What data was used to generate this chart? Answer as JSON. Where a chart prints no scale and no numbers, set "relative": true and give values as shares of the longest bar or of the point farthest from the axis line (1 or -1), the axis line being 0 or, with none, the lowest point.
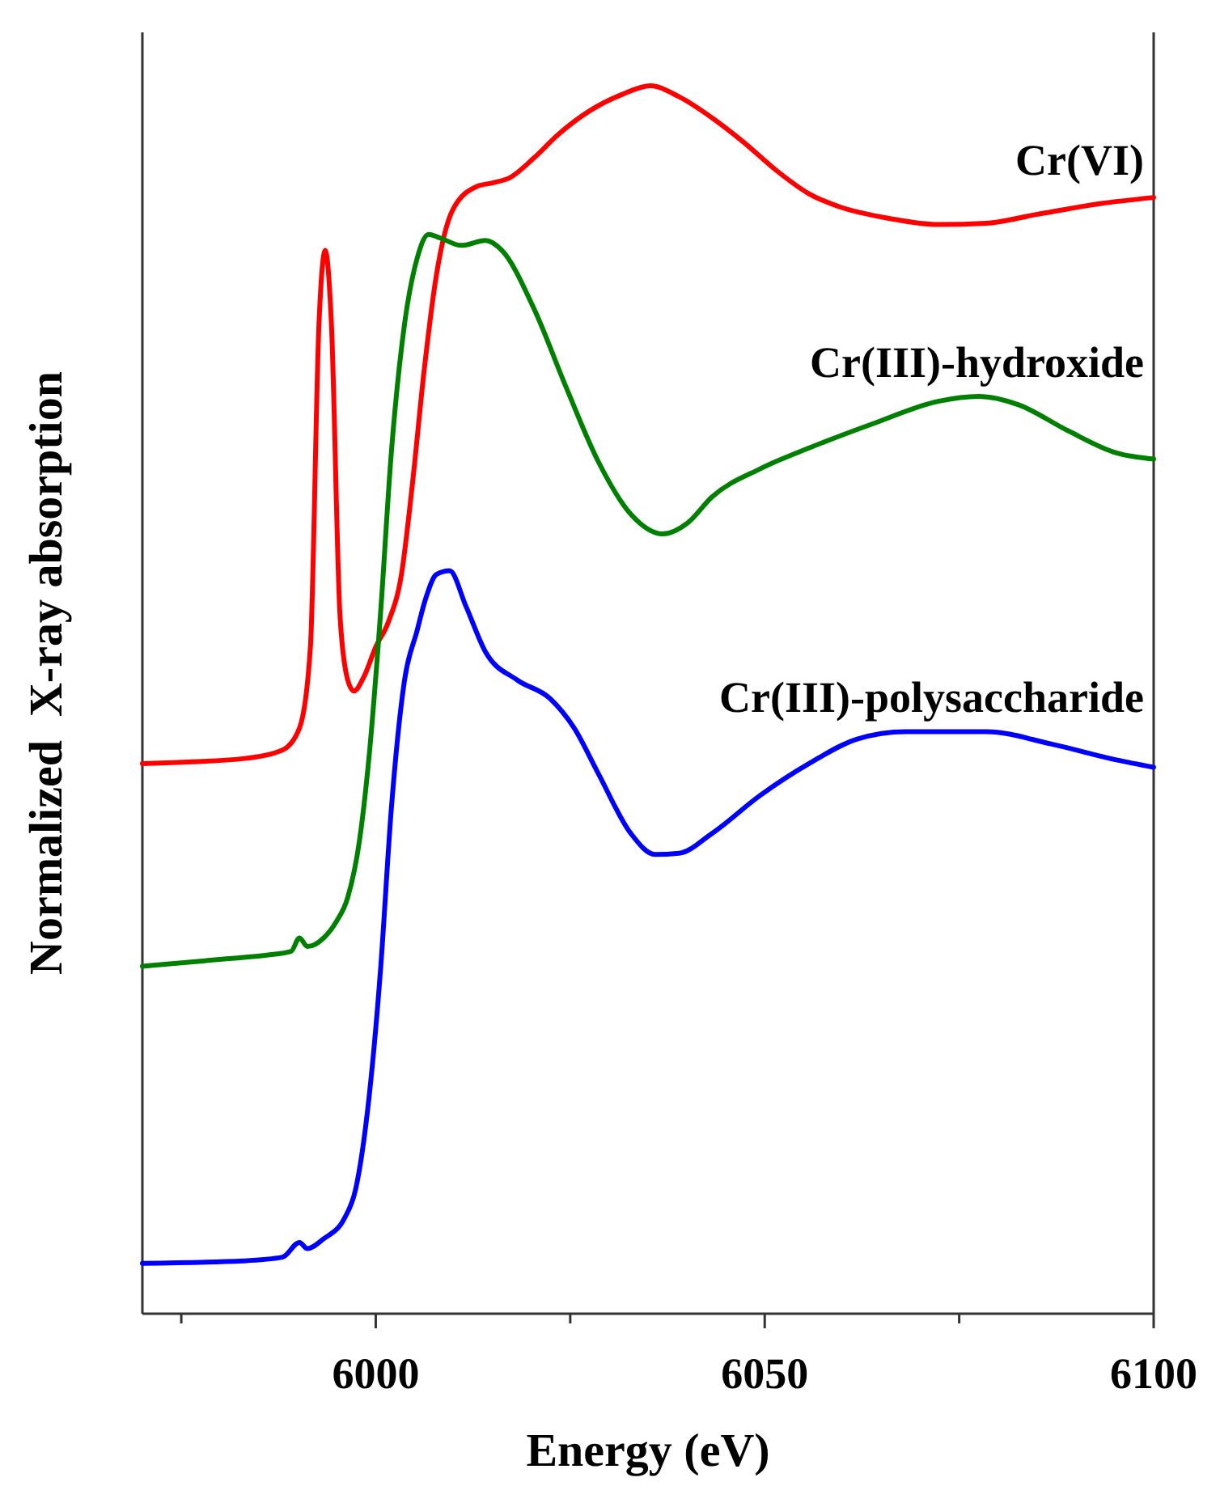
{
  "chart_data": {
    "type": "line",
    "relative": true,
    "xlabel": "Energy (eV)",
    "ylabel": "Normalized  X-ray absorption",
    "xlim": [
      5970,
      6100
    ],
    "xticks": [
      {
        "value": 5975,
        "label": null
      },
      6000,
      {
        "value": 6025,
        "label": null
      },
      6050,
      {
        "value": 6075,
        "label": null
      },
      6100
    ],
    "series": [
      {
        "name": "Cr(VI)",
        "color": "#ff0000",
        "x": [
          5970,
          5982.9,
          5988,
          5990.2,
          5991.6,
          5992.7,
          5993.5,
          5994.3,
          5995.4,
          5996.4,
          5997.2,
          5998.5,
          6000,
          6001.6,
          6003.3,
          6004.7,
          6006.2,
          6007.8,
          6009.9,
          6013,
          6015.1,
          6017.2,
          6020.3,
          6023.4,
          6027.6,
          6031.7,
          6035.3,
          6039,
          6043.2,
          6047.3,
          6051.5,
          6055.7,
          6059.8,
          6066,
          6072.3,
          6078.5,
          6084.8,
          6093.1,
          6100
        ],
        "values": [
          0.448,
          0.452,
          0.459,
          0.477,
          0.543,
          0.806,
          0.866,
          0.806,
          0.569,
          0.516,
          0.507,
          0.519,
          0.543,
          0.563,
          0.602,
          0.675,
          0.767,
          0.846,
          0.899,
          0.918,
          0.921,
          0.925,
          0.941,
          0.96,
          0.98,
          0.993,
          1,
          0.991,
          0.974,
          0.954,
          0.931,
          0.912,
          0.901,
          0.892,
          0.887,
          0.888,
          0.895,
          0.904,
          0.909
        ]
      },
      {
        "name": "Cr(III)-hydroxide",
        "color": "#008000",
        "x": [
          5970,
          5980.8,
          5986,
          5989.1,
          5990.2,
          5991.2,
          5993.3,
          5994.9,
          5996.4,
          5997.9,
          5999.1,
          6000.6,
          6002,
          6003.7,
          6005.3,
          6006.8,
          6008.3,
          6011,
          6014.1,
          6016.2,
          6020.3,
          6024.5,
          6028.6,
          6032.8,
          6036.9,
          6040.1,
          6043.2,
          6049.4,
          6055.7,
          6064,
          6072.3,
          6077.5,
          6082.7,
          6089,
          6095.2,
          6100
        ],
        "values": [
          0.283,
          0.289,
          0.292,
          0.295,
          0.306,
          0.299,
          0.306,
          0.319,
          0.339,
          0.385,
          0.451,
          0.569,
          0.701,
          0.806,
          0.859,
          0.879,
          0.876,
          0.87,
          0.874,
          0.866,
          0.819,
          0.754,
          0.694,
          0.651,
          0.635,
          0.644,
          0.665,
          0.688,
          0.705,
          0.725,
          0.743,
          0.747,
          0.74,
          0.719,
          0.701,
          0.696
        ]
      },
      {
        "name": "Cr(III)-polysaccharide",
        "color": "#0000ff",
        "x": [
          5970,
          5982.9,
          5988,
          5990.2,
          5991.2,
          5993.3,
          5996,
          5997.4,
          5999.1,
          6000.6,
          6002,
          6003.7,
          6005.3,
          6006.4,
          6007.8,
          6009.5,
          6011.6,
          6014.1,
          6018.2,
          6022.4,
          6025.5,
          6028.6,
          6032.8,
          6035.9,
          6039,
          6043.2,
          6049.4,
          6055.7,
          6061.9,
          6068.1,
          6078.5,
          6086.8,
          6095.2,
          6100
        ],
        "values": [
          0.041,
          0.043,
          0.046,
          0.058,
          0.053,
          0.061,
          0.078,
          0.101,
          0.174,
          0.279,
          0.411,
          0.516,
          0.556,
          0.582,
          0.602,
          0.605,
          0.576,
          0.539,
          0.516,
          0.501,
          0.477,
          0.44,
          0.391,
          0.374,
          0.375,
          0.391,
          0.422,
          0.448,
          0.468,
          0.474,
          0.474,
          0.464,
          0.451,
          0.445
        ]
      }
    ]
  }
}
